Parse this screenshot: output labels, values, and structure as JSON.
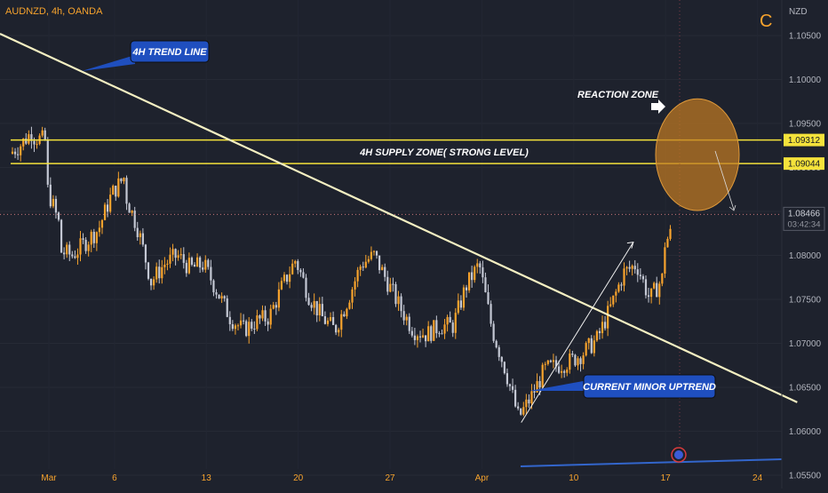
{
  "header": {
    "symbol_line": "AUDNZD, 4h, OANDA",
    "logo_letter": "C",
    "currency": "NZD"
  },
  "colors": {
    "background": "#1e222d",
    "bull_candle": "#f7a32d",
    "bear_candle": "#c4c8d4",
    "trendline": "#f5f0c2",
    "zone_line": "#f5e33b",
    "callout": "#1f4fbf",
    "reaction_zone": "#c07a22",
    "tick_text": "#b2b5be",
    "symbol_text": "#f7a32d"
  },
  "chart_data": {
    "type": "candlestick",
    "title": "AUDNZD, 4h, OANDA",
    "ylabel": "NZD",
    "ylim": [
      1.054,
      1.1085
    ],
    "x_ticks": [
      "Mar",
      "6",
      "13",
      "20",
      "27",
      "Apr",
      "10",
      "17",
      "24"
    ],
    "y_ticks": [
      "1.10500",
      "1.10000",
      "1.09500",
      "1.09000",
      "1.08500",
      "1.08000",
      "1.07500",
      "1.07000",
      "1.06500",
      "1.06000",
      "1.05500"
    ],
    "price_levels": [
      {
        "label": "1.09312",
        "value": 1.09312
      },
      {
        "label": "1.09044",
        "value": 1.09044
      }
    ],
    "current_price": {
      "label": "1.08466",
      "value": 1.08466,
      "countdown": "03:42:34"
    },
    "supply_zone": {
      "top": 1.09312,
      "bottom": 1.09044,
      "label": "4H SUPPLY ZONE( STRONG LEVEL)"
    },
    "trendline": {
      "label": "4H TREND LINE",
      "from": {
        "date": "Feb 26",
        "price": 1.1055
      },
      "to": {
        "date": "Apr 25",
        "price": 1.0633
      }
    },
    "minor_uptrend": {
      "label": "CURRENT MINOR UPTREND",
      "from": {
        "date": "Apr 6",
        "price": 1.061
      },
      "to": {
        "date": "Apr 14",
        "price": 1.0815
      }
    },
    "reaction_zone": {
      "label": "REACTION ZONE",
      "center_date": "Apr 19",
      "center_price": 1.0915,
      "price_top": 1.0978,
      "price_bottom": 1.0851
    },
    "candles_anchor_close": [
      [
        "Feb 26",
        1.0913
      ],
      [
        "Feb 27",
        1.0925
      ],
      [
        "Feb 28",
        1.0942
      ],
      [
        "Feb 28",
        1.0935
      ],
      [
        "Mar 1",
        1.093
      ],
      [
        "Mar 1",
        1.088
      ],
      [
        "Mar 2",
        1.0835
      ],
      [
        "Mar 2",
        1.0805
      ],
      [
        "Mar 3",
        1.08
      ],
      [
        "Mar 4",
        1.0815
      ],
      [
        "Mar 5",
        1.083
      ],
      [
        "Mar 6",
        1.087
      ],
      [
        "Mar 7",
        1.089
      ],
      [
        "Mar 7",
        1.087
      ],
      [
        "Mar 8",
        1.083
      ],
      [
        "Mar 9",
        1.077
      ],
      [
        "Mar 10",
        1.079
      ],
      [
        "Mar 11",
        1.08
      ],
      [
        "Mar 12",
        1.0785
      ],
      [
        "Mar 13",
        1.079
      ],
      [
        "Mar 14",
        1.076
      ],
      [
        "Mar 15",
        1.073
      ],
      [
        "Mar 16",
        1.0715
      ],
      [
        "Mar 17",
        1.0725
      ],
      [
        "Mar 18",
        1.073
      ],
      [
        "Mar 19",
        1.0765
      ],
      [
        "Mar 20",
        1.0795
      ],
      [
        "Mar 21",
        1.0755
      ],
      [
        "Mar 22",
        1.073
      ],
      [
        "Mar 23",
        1.0715
      ],
      [
        "Mar 24",
        1.075
      ],
      [
        "Mar 25",
        1.079
      ],
      [
        "Mar 26",
        1.08
      ],
      [
        "Mar 27",
        1.077
      ],
      [
        "Mar 28",
        1.074
      ],
      [
        "Mar 29",
        1.0715
      ],
      [
        "Mar 30",
        1.071
      ],
      [
        "Mar 31",
        1.072
      ],
      [
        "Apr 1",
        1.072
      ],
      [
        "Apr 2",
        1.0765
      ],
      [
        "Apr 3",
        1.079
      ],
      [
        "Apr 4",
        1.0715
      ],
      [
        "Apr 5",
        1.067
      ],
      [
        "Apr 6",
        1.0615
      ],
      [
        "Apr 7",
        1.064
      ],
      [
        "Apr 8",
        1.067
      ],
      [
        "Apr 9",
        1.0675
      ],
      [
        "Apr 10",
        1.068
      ],
      [
        "Apr 11",
        1.069
      ],
      [
        "Apr 12",
        1.0705
      ],
      [
        "Apr 13",
        1.074
      ],
      [
        "Apr 14",
        1.078
      ],
      [
        "Apr 15",
        1.079
      ],
      [
        "Apr 16",
        1.075
      ],
      [
        "Apr 17",
        1.0775
      ],
      [
        "Apr 17",
        1.081
      ],
      [
        "Apr 18",
        1.0835
      ],
      [
        "Apr 18",
        1.0847
      ]
    ]
  }
}
